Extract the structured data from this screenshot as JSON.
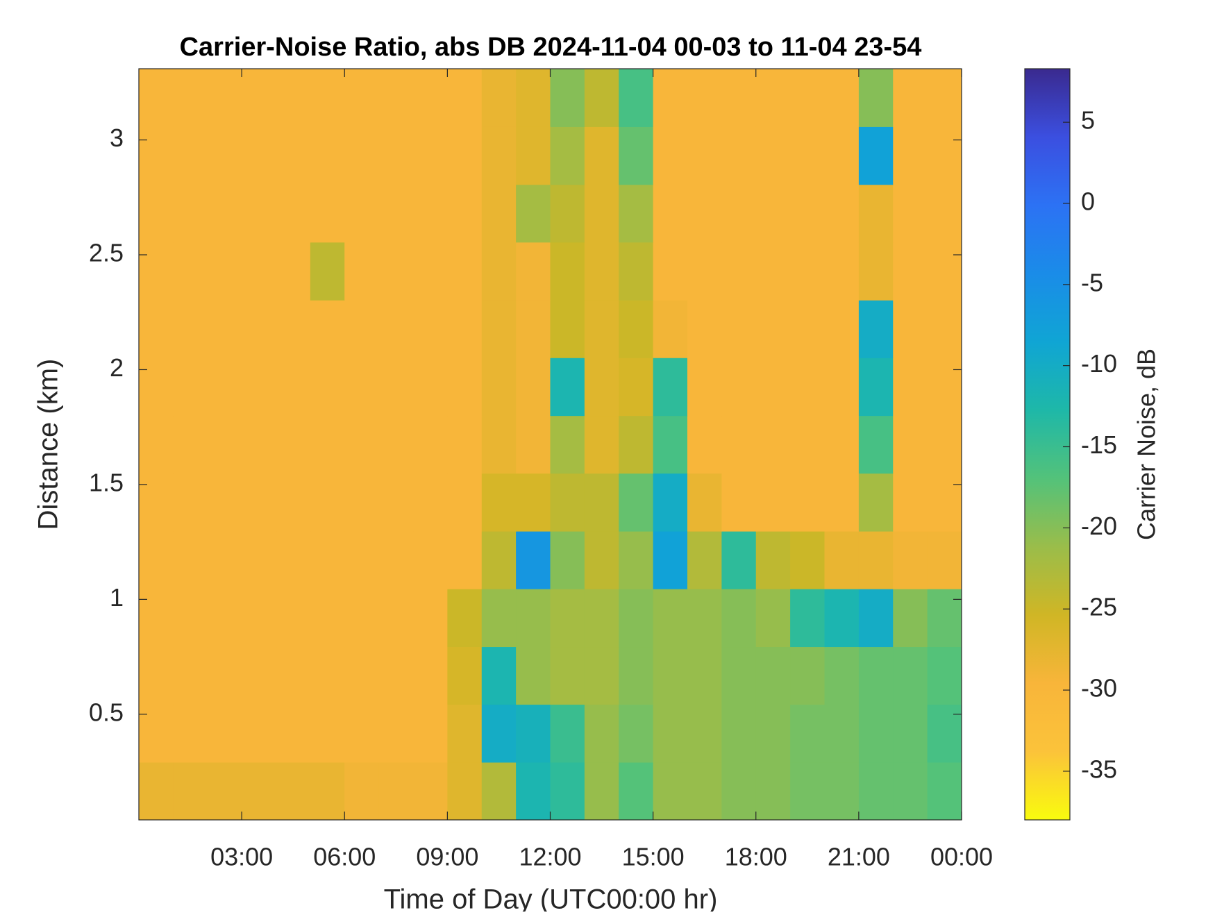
{
  "chart_data": {
    "type": "heatmap",
    "title": "Carrier-Noise Ratio, abs DB 2024-11-04 00-03 to 11-04 23-54",
    "x_label": "Time of Day (UTC00:00 hr)",
    "y_label": "Distance (km)",
    "colorbar_label": "Carrier Noise, dB",
    "x": [
      0.5,
      1.5,
      2.5,
      3.5,
      4.5,
      5.5,
      6.5,
      7.5,
      8.5,
      9.5,
      10.5,
      11.5,
      12.5,
      13.5,
      14.5,
      15.5,
      16.5,
      17.5,
      18.5,
      19.5,
      20.5,
      21.5,
      22.5,
      23.5
    ],
    "y": [
      0.166,
      0.417,
      0.669,
      0.92,
      1.172,
      1.423,
      1.675,
      1.926,
      2.178,
      2.429,
      2.681,
      2.932,
      3.184
    ],
    "z": [
      [
        -28,
        -28,
        -28,
        -28,
        -28,
        -28,
        -29,
        -29,
        -29,
        -27,
        -23,
        -12,
        -14,
        -21,
        -17,
        -21,
        -21,
        -20,
        -20,
        -19,
        -19,
        -18,
        -18,
        -17
      ],
      [
        -30,
        -30,
        -30,
        -30,
        -30,
        -30,
        -30,
        -30,
        -30,
        -27,
        -10,
        -11,
        -15,
        -21,
        -19,
        -21,
        -21,
        -20,
        -20,
        -19,
        -19,
        -18,
        -18,
        -16
      ],
      [
        -30,
        -30,
        -30,
        -30,
        -30,
        -30,
        -30,
        -30,
        -30,
        -26,
        -12,
        -21,
        -22,
        -22,
        -20,
        -21,
        -21,
        -20,
        -20,
        -20,
        -19,
        -18,
        -18,
        -17
      ],
      [
        -30,
        -30,
        -30,
        -30,
        -30,
        -30,
        -30,
        -30,
        -30,
        -25,
        -21,
        -21,
        -22,
        -22,
        -20,
        -21,
        -21,
        -20,
        -21,
        -14,
        -12,
        -10,
        -20,
        -18
      ],
      [
        -30,
        -30,
        -30,
        -30,
        -30,
        -30,
        -30,
        -30,
        -30,
        -30,
        -24,
        -6,
        -20,
        -24,
        -21,
        -8,
        -23,
        -14,
        -24,
        -25,
        -28,
        -28,
        -29,
        -29
      ],
      [
        -30,
        -30,
        -30,
        -30,
        -30,
        -30,
        -30,
        -30,
        -30,
        -30,
        -26,
        -26,
        -24,
        -24,
        -18,
        -10,
        -28,
        -30,
        -30,
        -30,
        -30,
        -22,
        -30,
        -30
      ],
      [
        -30,
        -30,
        -30,
        -30,
        -30,
        -30,
        -30,
        -30,
        -30,
        -30,
        -28,
        -29,
        -22,
        -27,
        -24,
        -16,
        -30,
        -30,
        -30,
        -30,
        -30,
        -16,
        -30,
        -30
      ],
      [
        -30,
        -30,
        -30,
        -30,
        -30,
        -30,
        -30,
        -30,
        -30,
        -30,
        -28,
        -29,
        -12,
        -27,
        -26,
        -14,
        -30,
        -30,
        -30,
        -30,
        -30,
        -12,
        -30,
        -30
      ],
      [
        -30,
        -30,
        -30,
        -30,
        -30,
        -30,
        -30,
        -30,
        -30,
        -30,
        -28,
        -29,
        -25,
        -27,
        -25,
        -29,
        -30,
        -30,
        -30,
        -30,
        -30,
        -10,
        -30,
        -30
      ],
      [
        -30,
        -30,
        -30,
        -30,
        -30,
        -24,
        -30,
        -30,
        -30,
        -30,
        -28,
        -29,
        -25,
        -27,
        -24,
        -30,
        -30,
        -30,
        -30,
        -30,
        -30,
        -28,
        -30,
        -30
      ],
      [
        -30,
        -30,
        -30,
        -30,
        -30,
        -30,
        -30,
        -30,
        -30,
        -30,
        -28,
        -22,
        -24,
        -27,
        -22,
        -30,
        -30,
        -30,
        -30,
        -30,
        -30,
        -28,
        -30,
        -30
      ],
      [
        -30,
        -30,
        -30,
        -30,
        -30,
        -30,
        -30,
        -30,
        -30,
        -30,
        -28,
        -27,
        -22,
        -27,
        -18,
        -30,
        -30,
        -30,
        -30,
        -30,
        -30,
        -8,
        -30,
        -30
      ],
      [
        -30,
        -30,
        -30,
        -30,
        -30,
        -30,
        -30,
        -30,
        -30,
        -30,
        -28,
        -27,
        -20,
        -24,
        -16,
        -30,
        -30,
        -30,
        -30,
        -30,
        -30,
        -20,
        -30,
        -30
      ]
    ],
    "xlim": [
      0,
      24
    ],
    "ylim": [
      0.04,
      3.31
    ],
    "xticks": [
      {
        "value": 3,
        "label": "03:00"
      },
      {
        "value": 6,
        "label": "06:00"
      },
      {
        "value": 9,
        "label": "09:00"
      },
      {
        "value": 12,
        "label": "12:00"
      },
      {
        "value": 15,
        "label": "15:00"
      },
      {
        "value": 18,
        "label": "18:00"
      },
      {
        "value": 21,
        "label": "21:00"
      },
      {
        "value": 24,
        "label": "00:00"
      }
    ],
    "yticks": [
      0.5,
      1,
      1.5,
      2,
      2.5,
      3
    ],
    "clim": [
      -38,
      8.3
    ],
    "cticks": [
      -35,
      -30,
      -25,
      -20,
      -15,
      -10,
      -5,
      0,
      5
    ],
    "colormap": [
      "#f9fb0e",
      "#fbc33a",
      "#f8b53a",
      "#d0b625",
      "#9abd4a",
      "#53c27a",
      "#1eb8a8",
      "#10a5d4",
      "#1a8ce8",
      "#2c72f4",
      "#3b4fe0",
      "#3a2a8f"
    ]
  }
}
